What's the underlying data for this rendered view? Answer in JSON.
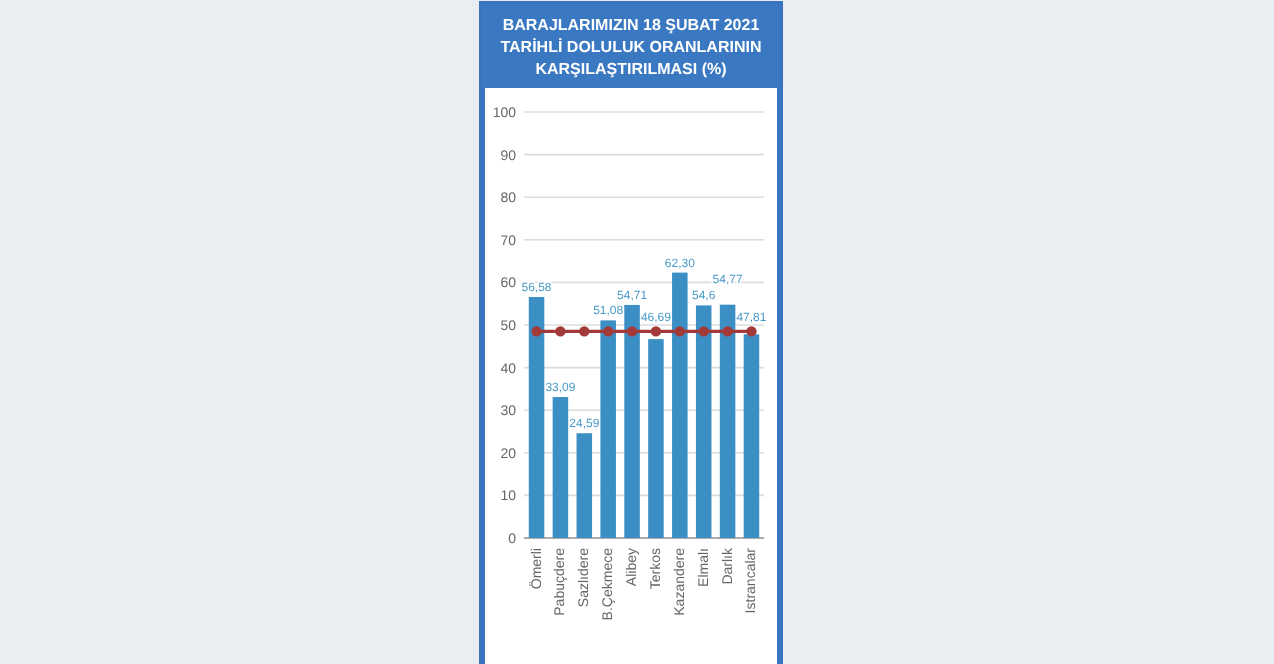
{
  "chart_data": {
    "type": "bar",
    "title": "BARAJLARIMIZIN 18 ŞUBAT 2021 TARİHLİ DOLULUK ORANLARININ KARŞILAŞTIRILMASI (%)",
    "categories": [
      "Ömerli",
      "Pabuçdere",
      "Sazlıdere",
      "B.Çekmece",
      "Alibey",
      "Terkos",
      "Kazandere",
      "Elmalı",
      "Darlık",
      "Istrancalar"
    ],
    "series": [
      {
        "color": "#3b8fc4",
        "values": [
          56.58,
          33.09,
          24.59,
          51.08,
          54.71,
          46.69,
          62.3,
          54.6,
          54.77,
          47.81
        ],
        "value_labels": [
          "56,58",
          "33,09",
          "24,59",
          "51,08",
          "54,71",
          "46,69",
          "62,30",
          "54,6",
          "54,77",
          "47,81"
        ]
      },
      {
        "type": "line",
        "color": "#a33a3a",
        "marker": "circle",
        "values": [
          48.5,
          48.5,
          48.5,
          48.5,
          48.5,
          48.5,
          48.5,
          48.5,
          48.5,
          48.5
        ]
      }
    ],
    "ylim": [
      0,
      100
    ],
    "yticks": [
      0,
      10,
      20,
      30,
      40,
      50,
      60,
      70,
      80,
      90,
      100
    ],
    "grid": "y"
  }
}
